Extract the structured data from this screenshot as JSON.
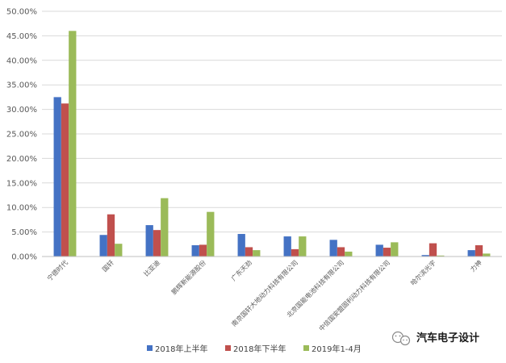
{
  "chart_data": {
    "type": "bar",
    "categories": [
      "宁德时代",
      "国轩",
      "比亚迪",
      "鹏辉新能源股份",
      "广东天劲",
      "南京国轩大地动力科技有限公司",
      "北京国能电池科技有限公司",
      "中信国安盟固利动力科技有限公司",
      "哈尔滨光宇",
      "力神"
    ],
    "series": [
      {
        "name": "2018年上半年",
        "values": [
          32.5,
          4.4,
          6.4,
          2.3,
          4.6,
          4.1,
          3.4,
          2.4,
          0.3,
          1.3
        ]
      },
      {
        "name": "2018年下半年",
        "values": [
          31.2,
          8.6,
          5.4,
          2.4,
          1.9,
          1.5,
          1.9,
          1.8,
          2.7,
          2.3
        ]
      },
      {
        "name": "2019年1-4月",
        "values": [
          46.0,
          2.6,
          11.9,
          9.1,
          1.3,
          4.1,
          1.0,
          2.9,
          0.2,
          0.6
        ]
      }
    ],
    "yticks": [
      "0.00%",
      "5.00%",
      "10.00%",
      "15.00%",
      "20.00%",
      "25.00%",
      "30.00%",
      "35.00%",
      "40.00%",
      "45.00%",
      "50.00%"
    ],
    "ylim": [
      0,
      50
    ],
    "grid": true,
    "legend_position": "bottom",
    "colors": [
      "#4472C4",
      "#C0504D",
      "#9BBB59"
    ]
  },
  "watermark": {
    "text": "汽车电子设计",
    "icon": "wechat-icon"
  }
}
